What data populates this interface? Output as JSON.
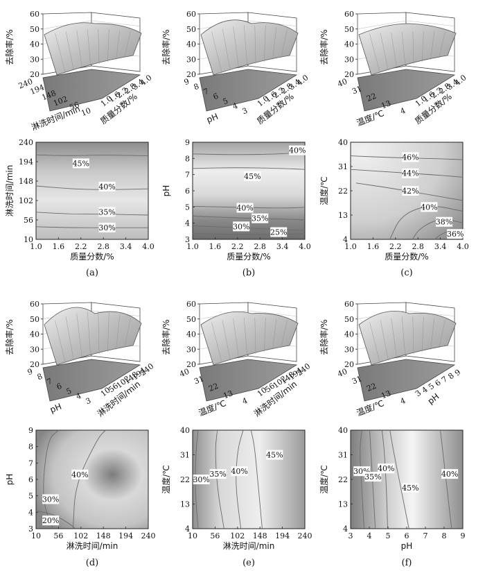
{
  "chart_data": [
    {
      "panel": "(a)",
      "type": "surface-contour",
      "x": {
        "label": "质量分数/%",
        "ticks": [
          "1.0",
          "1.6",
          "2.2",
          "2.8",
          "3.4",
          "4.0"
        ],
        "range": [
          1.0,
          4.0
        ]
      },
      "y": {
        "label": "淋洗时间/min",
        "ticks": [
          "10",
          "56",
          "102",
          "148",
          "194",
          "240"
        ],
        "range": [
          10,
          240
        ]
      },
      "z": {
        "label": "去除率/%",
        "ticks": [
          "20",
          "30",
          "40",
          "50",
          "60"
        ],
        "range": [
          20,
          60
        ]
      },
      "surface_3d_y_ticks": [
        "240",
        "194",
        "148",
        "102",
        "56",
        "10"
      ],
      "contour_levels": [
        {
          "label": "45%",
          "value": 45,
          "x": 2.2,
          "y": 190
        },
        {
          "label": "40%",
          "value": 40,
          "x": 2.9,
          "y": 135
        },
        {
          "label": "35%",
          "value": 35,
          "x": 2.9,
          "y": 75
        },
        {
          "label": "30%",
          "value": 30,
          "x": 2.9,
          "y": 38
        }
      ]
    },
    {
      "panel": "(b)",
      "type": "surface-contour",
      "x": {
        "label": "质量分数/%",
        "ticks": [
          "1.0",
          "1.6",
          "2.2",
          "2.8",
          "3.4",
          "4.0"
        ],
        "range": [
          1.0,
          4.0
        ]
      },
      "y": {
        "label": "pH",
        "ticks": [
          "3",
          "4",
          "5",
          "6",
          "7",
          "8",
          "9"
        ],
        "range": [
          3,
          9
        ]
      },
      "z": {
        "label": "去除率/%",
        "ticks": [
          "20",
          "30",
          "40",
          "50",
          "60"
        ],
        "range": [
          20,
          60
        ]
      },
      "surface_3d_y_ticks": [
        "9",
        "8",
        "7",
        "6",
        "5",
        "4",
        "3"
      ],
      "contour_levels": [
        {
          "label": "40%",
          "value": 40,
          "x": 3.8,
          "y": 8.5
        },
        {
          "label": "45%",
          "value": 45,
          "x": 2.6,
          "y": 6.9
        },
        {
          "label": "40%",
          "value": 40,
          "x": 2.4,
          "y": 4.95
        },
        {
          "label": "35%",
          "value": 35,
          "x": 2.8,
          "y": 4.3
        },
        {
          "label": "30%",
          "value": 30,
          "x": 2.3,
          "y": 3.8
        },
        {
          "label": "25%",
          "value": 25,
          "x": 3.3,
          "y": 3.45
        }
      ]
    },
    {
      "panel": "(c)",
      "type": "surface-contour",
      "x": {
        "label": "质量分数/%",
        "ticks": [
          "1.0",
          "1.6",
          "2.2",
          "2.8",
          "3.4",
          "4.0"
        ],
        "range": [
          1.0,
          4.0
        ]
      },
      "y": {
        "label": "温度/℃",
        "ticks": [
          "4",
          "13",
          "22",
          "31",
          "40"
        ],
        "range": [
          4,
          40
        ]
      },
      "z": {
        "label": "去除率/%",
        "ticks": [
          "20",
          "30",
          "40",
          "50",
          "60"
        ],
        "range": [
          20,
          60
        ]
      },
      "surface_3d_y_ticks": [
        "40",
        "31",
        "22",
        "13",
        "4"
      ],
      "contour_levels": [
        {
          "label": "46%",
          "value": 46,
          "x": 2.6,
          "y": 34.5
        },
        {
          "label": "44%",
          "value": 44,
          "x": 2.6,
          "y": 28.5
        },
        {
          "label": "42%",
          "value": 42,
          "x": 2.6,
          "y": 22
        },
        {
          "label": "40%",
          "value": 40,
          "x": 3.1,
          "y": 16
        },
        {
          "label": "38%",
          "value": 38,
          "x": 3.5,
          "y": 10.5
        },
        {
          "label": "36%",
          "value": 36,
          "x": 3.8,
          "y": 6
        }
      ]
    },
    {
      "panel": "(d)",
      "type": "surface-contour",
      "x": {
        "label": "淋洗时间/min",
        "ticks": [
          "10",
          "56",
          "102",
          "148",
          "194",
          "240"
        ],
        "range": [
          10,
          240
        ]
      },
      "y": {
        "label": "pH",
        "ticks": [
          "3",
          "4",
          "5",
          "6",
          "7",
          "8",
          "9"
        ],
        "range": [
          3,
          9
        ]
      },
      "z": {
        "label": "去除率/%",
        "ticks": [
          "20",
          "30",
          "40",
          "50",
          "60"
        ],
        "range": [
          20,
          60
        ]
      },
      "surface_3d_y_ticks": [
        "9",
        "8",
        "7",
        "6",
        "5",
        "4",
        "3"
      ],
      "contour_levels": [
        {
          "label": "40%",
          "value": 40,
          "x": 100,
          "y": 6.3
        },
        {
          "label": "30%",
          "value": 30,
          "x": 40,
          "y": 4.8
        },
        {
          "label": "20%",
          "value": 20,
          "x": 40,
          "y": 3.5
        }
      ]
    },
    {
      "panel": "(e)",
      "type": "surface-contour",
      "x": {
        "label": "淋洗时间/min",
        "ticks": [
          "10",
          "56",
          "102",
          "148",
          "194",
          "240"
        ],
        "range": [
          10,
          240
        ]
      },
      "y": {
        "label": "温度/℃",
        "ticks": [
          "4",
          "13",
          "22",
          "31",
          "40"
        ],
        "range": [
          4,
          40
        ]
      },
      "z": {
        "label": "去除率/%",
        "ticks": [
          "20",
          "30",
          "40",
          "50",
          "60"
        ],
        "range": [
          20,
          60
        ]
      },
      "surface_3d_y_ticks": [
        "40",
        "31",
        "22",
        "13",
        "4"
      ],
      "contour_levels": [
        {
          "label": "30%",
          "value": 30,
          "x": 28,
          "y": 22
        },
        {
          "label": "35%",
          "value": 35,
          "x": 62,
          "y": 24
        },
        {
          "label": "40%",
          "value": 40,
          "x": 106,
          "y": 25
        },
        {
          "label": "45%",
          "value": 45,
          "x": 178,
          "y": 31
        }
      ]
    },
    {
      "panel": "(f)",
      "type": "surface-contour",
      "x": {
        "label": "pH",
        "ticks": [
          "3",
          "4",
          "5",
          "6",
          "7",
          "8",
          "9"
        ],
        "range": [
          3,
          9
        ]
      },
      "y": {
        "label": "温度/℃",
        "ticks": [
          "4",
          "13",
          "22",
          "31",
          "40"
        ],
        "range": [
          4,
          40
        ]
      },
      "z": {
        "label": "去除率/%",
        "ticks": [
          "20",
          "30",
          "40",
          "50",
          "60"
        ],
        "range": [
          20,
          60
        ]
      },
      "surface_3d_y_ticks": [
        "40",
        "31",
        "22",
        "13",
        "4"
      ],
      "contour_levels": [
        {
          "label": "30%",
          "value": 30,
          "x": 3.6,
          "y": 25
        },
        {
          "label": "35%",
          "value": 35,
          "x": 4.2,
          "y": 23
        },
        {
          "label": "40%",
          "value": 40,
          "x": 4.9,
          "y": 26
        },
        {
          "label": "45%",
          "value": 45,
          "x": 6.2,
          "y": 19
        },
        {
          "label": "40%",
          "value": 40,
          "x": 8.3,
          "y": 24
        }
      ]
    }
  ]
}
